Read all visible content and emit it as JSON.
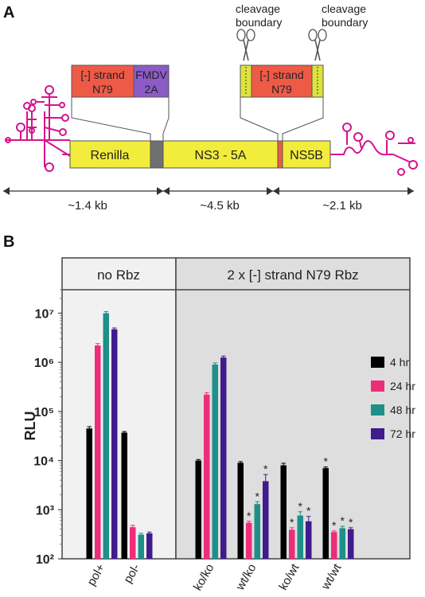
{
  "panel_a": {
    "letter": "A",
    "cleavage_label_1": "cleavage",
    "cleavage_label_2": "boundary",
    "insert_left": {
      "line1": "[-] strand",
      "line2": "N79",
      "fmdv_line1": "FMDV",
      "fmdv_line2": "2A"
    },
    "insert_right": {
      "line1": "[-] strand",
      "line2": "N79"
    },
    "segments": [
      "Renilla",
      "NS3 - 5A",
      "NS5B"
    ],
    "sizes": [
      "~1.4 kb",
      "~4.5 kb",
      "~2.1 kb"
    ],
    "colors": {
      "yellow": "#f2ec3c",
      "red": "#ef5a47",
      "purple": "#8c5bc6",
      "magenta": "#d4148c",
      "gray": "#707070",
      "lime": "#dde33c"
    }
  },
  "panel_b": {
    "letter": "B",
    "header_left": "no Rbz",
    "header_right": "2 x [-] strand N79 Rbz",
    "significance_marker": "*"
  },
  "chart_data": {
    "type": "bar",
    "ylabel": "RLU",
    "yscale": "log",
    "ylim": [
      100,
      30000000
    ],
    "yticks": [
      "10²",
      "10³",
      "10⁴",
      "10⁵",
      "10⁶",
      "10⁷"
    ],
    "categories": [
      "pol+",
      "pol-",
      "ko/ko",
      "wt/ko",
      "ko/wt",
      "wt/wt"
    ],
    "legend_position": "right",
    "series": [
      {
        "name": "4 hr",
        "color": "#000000",
        "values": [
          45000,
          37000,
          10000,
          9000,
          8000,
          7000
        ],
        "errors": [
          4000,
          2000,
          500,
          500,
          800,
          400
        ],
        "significant": [
          false,
          false,
          false,
          false,
          false,
          true
        ]
      },
      {
        "name": "24 hr",
        "color": "#ee2d7a",
        "values": [
          2200000,
          440,
          220000,
          540,
          390,
          350
        ],
        "errors": [
          200000,
          40,
          20000,
          40,
          40,
          20
        ],
        "significant": [
          false,
          false,
          false,
          true,
          true,
          true
        ]
      },
      {
        "name": "48 hr",
        "color": "#1f8f8a",
        "values": [
          10000000,
          310,
          900000,
          1300,
          760,
          420
        ],
        "errors": [
          800000,
          20,
          70000,
          150,
          150,
          40
        ],
        "significant": [
          false,
          false,
          false,
          true,
          true,
          true
        ]
      },
      {
        "name": "72 hr",
        "color": "#3e1c8c",
        "values": [
          4700000,
          330,
          1250000,
          3800,
          580,
          400
        ],
        "errors": [
          300000,
          20,
          90000,
          1400,
          150,
          30
        ],
        "significant": [
          false,
          false,
          false,
          true,
          true,
          true
        ]
      }
    ]
  }
}
